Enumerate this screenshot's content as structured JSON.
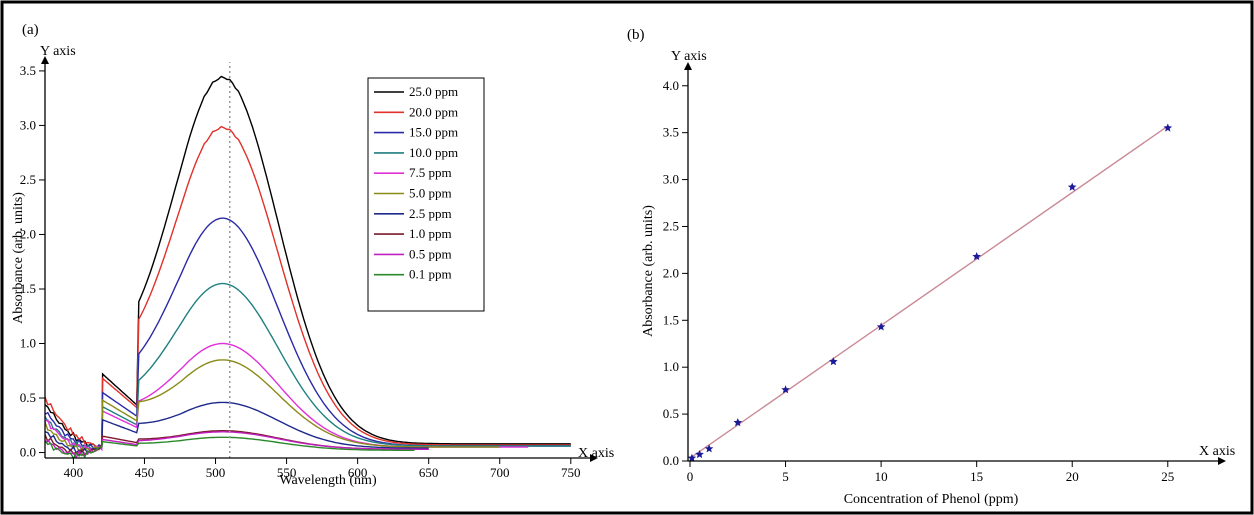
{
  "chart_data": [
    {
      "panel_label": "(a)",
      "type": "line",
      "xlabel": "Wavelength (nm)",
      "ylabel": "Absorbance (arb. units)",
      "x_axis_tag": "X axis",
      "y_axis_tag": "Y axis",
      "xlim": [
        380,
        760
      ],
      "ylim": [
        -0.05,
        3.6
      ],
      "xticks": [
        "400",
        "450",
        "500",
        "550",
        "600",
        "650",
        "700",
        "750"
      ],
      "yticks": [
        "0.0",
        "0.5",
        "1.0",
        "1.5",
        "2.0",
        "2.5",
        "3.0",
        "3.5"
      ],
      "reference_line_x": 510,
      "legend_position": "top-right",
      "series": [
        {
          "name": "25.0 ppm",
          "color": "#000000",
          "peak": 3.44,
          "shoulder": 0.72,
          "start": 0.45,
          "end": 0.08,
          "x_end": 750
        },
        {
          "name": "20.0 ppm",
          "color": "#e0312b",
          "peak": 2.98,
          "shoulder": 0.68,
          "start": 0.5,
          "end": 0.07,
          "x_end": 750
        },
        {
          "name": "15.0 ppm",
          "color": "#2a2aa8",
          "peak": 2.15,
          "shoulder": 0.55,
          "start": 0.38,
          "end": 0.06,
          "x_end": 750
        },
        {
          "name": "10.0 ppm",
          "color": "#1f7f7f",
          "peak": 1.55,
          "shoulder": 0.42,
          "start": 0.32,
          "end": 0.06,
          "x_end": 750
        },
        {
          "name": "7.5 ppm",
          "color": "#e030d8",
          "peak": 1.0,
          "shoulder": 0.38,
          "start": 0.3,
          "end": 0.05,
          "x_end": 720
        },
        {
          "name": "5.0 ppm",
          "color": "#8a8a18",
          "peak": 0.85,
          "shoulder": 0.48,
          "start": 0.25,
          "end": 0.05,
          "x_end": 700
        },
        {
          "name": "2.5 ppm",
          "color": "#1e2a8a",
          "peak": 0.46,
          "shoulder": 0.3,
          "start": 0.2,
          "end": 0.04,
          "x_end": 650
        },
        {
          "name": "1.0 ppm",
          "color": "#7a1a2a",
          "peak": 0.2,
          "shoulder": 0.15,
          "start": 0.15,
          "end": 0.03,
          "x_end": 650
        },
        {
          "name": "0.5 ppm",
          "color": "#c020c0",
          "peak": 0.19,
          "shoulder": 0.12,
          "start": 0.12,
          "end": 0.03,
          "x_end": 650
        },
        {
          "name": "0.1 ppm",
          "color": "#2a8a2a",
          "peak": 0.14,
          "shoulder": 0.1,
          "start": 0.1,
          "end": 0.02,
          "x_end": 640
        }
      ]
    },
    {
      "panel_label": "(b)",
      "type": "scatter",
      "xlabel": "Concentration of Phenol (ppm)",
      "ylabel": "Absorbance (arb. units)",
      "x_axis_tag": "X axis",
      "y_axis_tag": "Y axis",
      "xlim": [
        0,
        27
      ],
      "ylim": [
        0,
        4.2
      ],
      "xticks": [
        "0",
        "5",
        "10",
        "15",
        "20",
        "25"
      ],
      "yticks": [
        "0.0",
        "0.5",
        "1.0",
        "1.5",
        "2.0",
        "2.5",
        "3.0",
        "3.5",
        "4.0"
      ],
      "points": {
        "x": [
          0.1,
          0.5,
          1.0,
          2.5,
          5.0,
          7.5,
          10.0,
          15.0,
          20.0,
          25.0
        ],
        "y": [
          0.03,
          0.07,
          0.13,
          0.41,
          0.76,
          1.06,
          1.43,
          2.18,
          2.92,
          3.55
        ]
      },
      "marker_color": "#1a1a9a",
      "fit_line": {
        "x": [
          0,
          25
        ],
        "y": [
          0.03,
          3.57
        ],
        "color": "#c98a96"
      }
    }
  ]
}
